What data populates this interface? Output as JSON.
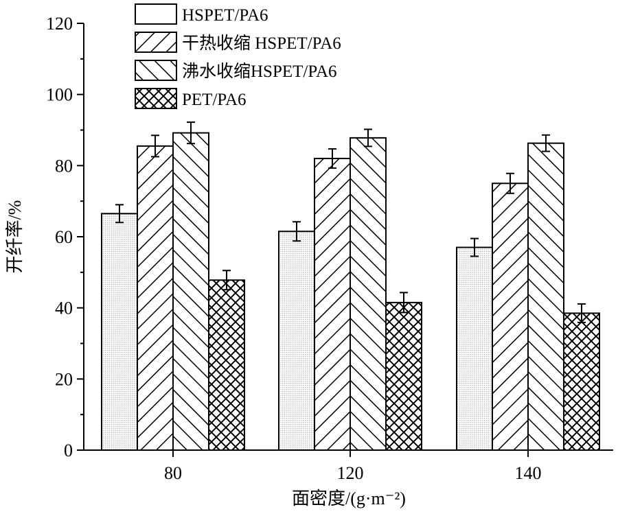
{
  "chart_data": {
    "type": "bar",
    "title": "",
    "xlabel": "面密度/(g·m⁻²)",
    "ylabel": "开纤率/%",
    "categories": [
      "80",
      "120",
      "140"
    ],
    "ylim": [
      0,
      120
    ],
    "yticks": [
      0,
      20,
      40,
      60,
      80,
      100,
      120
    ],
    "grid": false,
    "legend_position": "top-left",
    "series": [
      {
        "name": "HSPET/PA6",
        "pattern": "dots",
        "values": [
          66.5,
          61.5,
          57.0
        ],
        "errors": [
          2.5,
          2.7,
          2.5
        ]
      },
      {
        "name": "干热收缩 HSPET/PA6",
        "pattern": "forward-hatch",
        "values": [
          85.5,
          82.0,
          75.0
        ],
        "errors": [
          3.0,
          2.7,
          2.8
        ]
      },
      {
        "name": "沸水收缩HSPET/PA6",
        "pattern": "back-hatch",
        "values": [
          89.2,
          87.8,
          86.3
        ],
        "errors": [
          3.0,
          2.4,
          2.3
        ]
      },
      {
        "name": "PET/PA6",
        "pattern": "crosshatch",
        "values": [
          47.8,
          41.5,
          38.5
        ],
        "errors": [
          2.7,
          2.8,
          2.6
        ]
      }
    ]
  }
}
